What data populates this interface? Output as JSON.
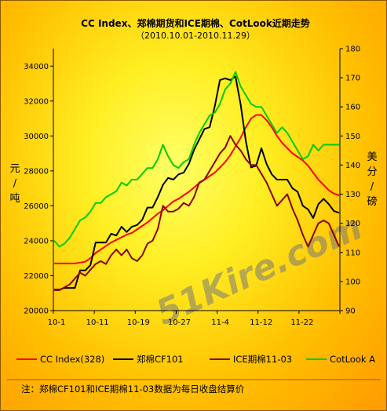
{
  "chart_data": {
    "type": "line",
    "title": "CC Index、郑棉期货和ICE期棉、CotLook近期走势",
    "subtitle": "（2010.10.01-2010.11.29）",
    "x_tick_labels": [
      "10-1",
      "10-11",
      "10-19",
      "10-27",
      "11-4",
      "11-12",
      "11-22"
    ],
    "ylabel_left": [
      "元",
      "/",
      "吨"
    ],
    "ylabel_right": [
      "美",
      "分",
      "/",
      "磅"
    ],
    "ylim_left": [
      20000,
      35000
    ],
    "yticks_left": [
      20000,
      22000,
      24000,
      26000,
      28000,
      30000,
      32000,
      34000
    ],
    "ylim_right": [
      90,
      180
    ],
    "yticks_right": [
      90,
      100,
      110,
      120,
      130,
      140,
      150,
      160,
      170,
      180
    ],
    "grid": false,
    "legend_position": "bottom",
    "series": [
      {
        "name": "CC Index(328)",
        "axis": "left",
        "color": "#ff0000",
        "values": [
          22700,
          22700,
          22700,
          22700,
          22700,
          22750,
          22800,
          23000,
          23300,
          23500,
          23700,
          23900,
          24050,
          24200,
          24350,
          24450,
          24650,
          24850,
          25050,
          25300,
          25550,
          25750,
          26000,
          26250,
          26400,
          26600,
          26800,
          27050,
          27300,
          27500,
          27700,
          27900,
          28200,
          28500,
          28900,
          29400,
          29900,
          30500,
          31000,
          31200,
          31200,
          30900,
          30500,
          30000,
          29600,
          29300,
          29000,
          28800,
          28600,
          28300,
          27900,
          27500,
          27200,
          26900,
          26700,
          26600
        ]
      },
      {
        "name": "郑棉CF101",
        "axis": "left",
        "color": "#000000",
        "values": [
          21200,
          21200,
          21300,
          21300,
          21300,
          22300,
          22300,
          22600,
          23900,
          23900,
          23900,
          24400,
          24300,
          24800,
          24500,
          24800,
          24900,
          25200,
          25900,
          25900,
          26500,
          27200,
          27600,
          27500,
          27800,
          27900,
          28400,
          29200,
          29800,
          30400,
          30500,
          31700,
          33200,
          33300,
          33200,
          33400,
          31800,
          29700,
          28200,
          28300,
          29300,
          28400,
          27800,
          27500,
          27500,
          27500,
          27000,
          26800,
          26000,
          25800,
          25300,
          26100,
          26400,
          26100,
          25700,
          25600
        ]
      },
      {
        "name": "ICE期棉11-03",
        "axis": "right",
        "color": "#8b0000",
        "values": [
          97,
          97,
          98,
          99,
          101,
          103,
          102,
          104,
          106,
          107,
          106,
          109,
          111,
          109,
          111,
          108,
          107,
          109,
          113,
          114,
          118,
          126,
          124,
          124,
          125,
          127,
          126,
          129,
          134,
          135,
          138,
          141,
          144,
          146,
          150,
          147,
          145,
          142,
          140,
          140,
          137,
          134,
          130,
          126,
          128,
          130,
          125,
          121,
          116,
          112,
          116,
          120,
          121,
          120,
          116,
          112
        ]
      },
      {
        "name": "CotLook A",
        "axis": "right",
        "color": "#00cc00",
        "values": [
          114,
          112,
          113,
          115,
          118,
          121,
          122,
          124,
          127,
          127,
          129,
          130,
          131,
          134,
          133,
          135,
          135,
          137,
          139,
          139,
          142,
          147,
          143,
          140,
          139,
          141,
          142,
          147,
          151,
          154,
          157,
          158,
          161,
          166,
          168,
          172,
          167,
          164,
          161,
          160,
          160,
          157,
          154,
          151,
          153,
          151,
          148,
          145,
          142,
          143,
          147,
          145,
          147,
          147,
          147,
          147
        ]
      }
    ],
    "note": "注：郑棉CF101和ICE期棉11-03数据为每日收盘结算价",
    "watermark": "51Kire.com"
  }
}
